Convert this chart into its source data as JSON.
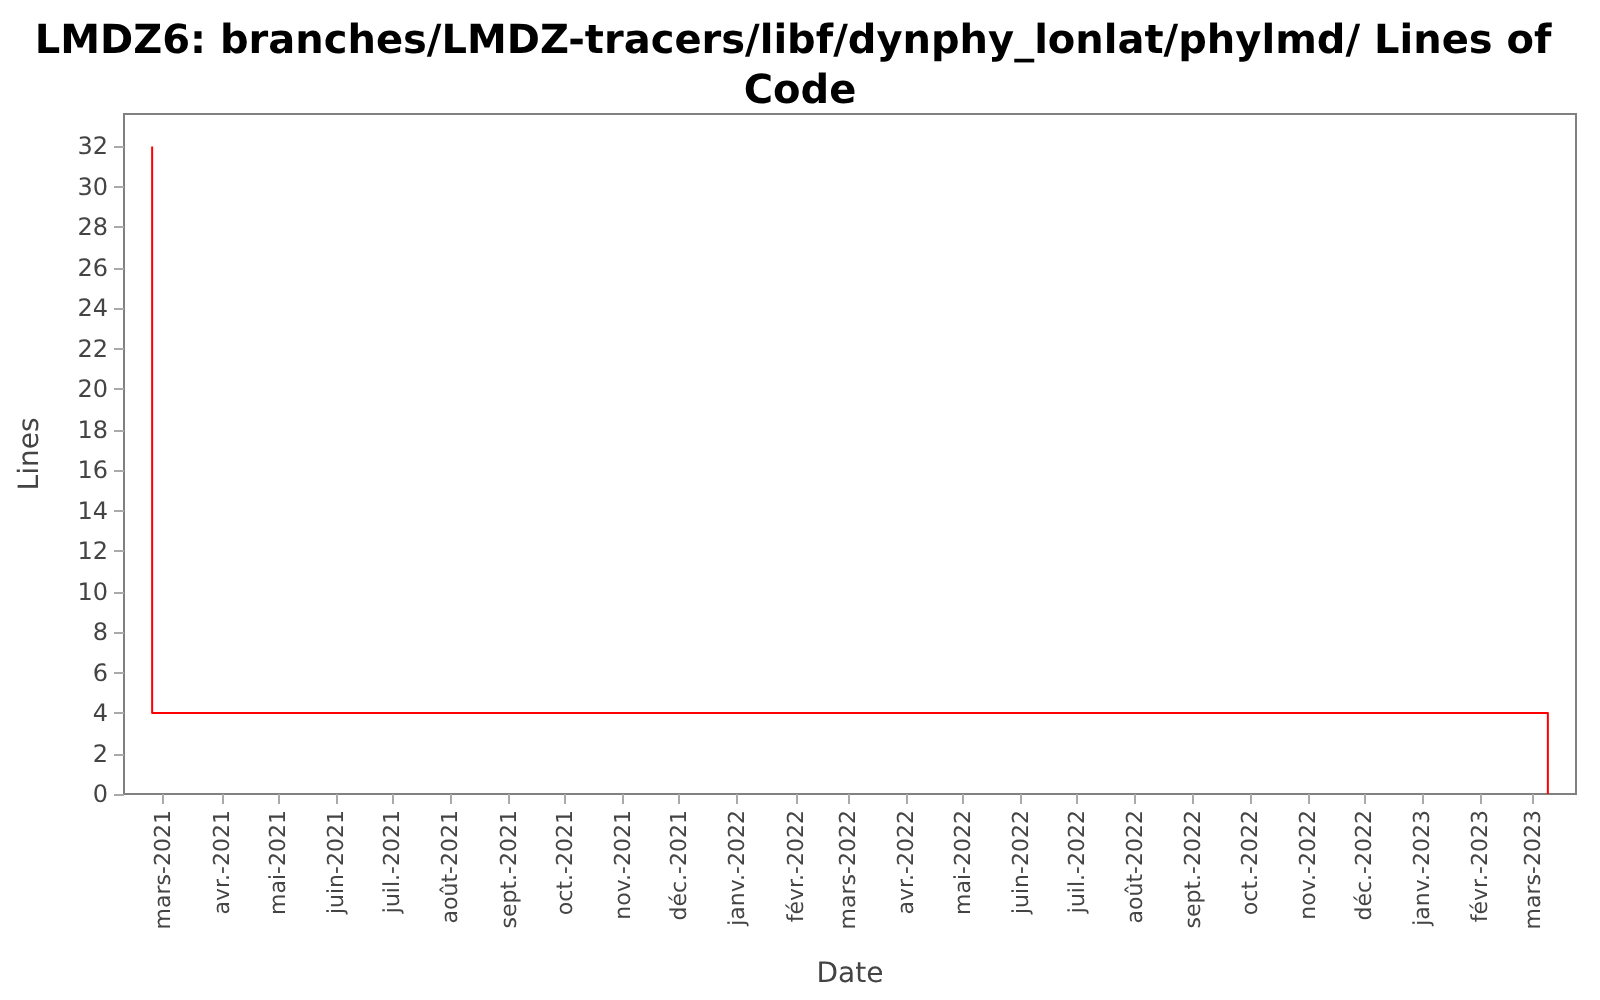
{
  "chart_data": {
    "type": "line",
    "title": "LMDZ6: branches/LMDZ-tracers/libf/dynphy_lonlat/phylmd/ Lines of Code",
    "xlabel": "Date",
    "ylabel": "Lines",
    "series": [
      {
        "color": "#ff0000",
        "x": [
          "2021-02-23",
          "2021-02-23",
          "2023-03-09",
          "2023-03-09"
        ],
        "values": [
          32,
          4,
          4,
          0
        ]
      }
    ],
    "xlim": [
      "2021-02-08",
      "2023-03-24"
    ],
    "ylim": [
      0,
      33.6
    ],
    "xticks": [
      {
        "value": "2021-03",
        "label": "mars-2021"
      },
      {
        "value": "2021-04",
        "label": "avr.-2021"
      },
      {
        "value": "2021-05",
        "label": "mai-2021"
      },
      {
        "value": "2021-06",
        "label": "juin-2021"
      },
      {
        "value": "2021-07",
        "label": "juil.-2021"
      },
      {
        "value": "2021-08",
        "label": "août-2021"
      },
      {
        "value": "2021-09",
        "label": "sept.-2021"
      },
      {
        "value": "2021-10",
        "label": "oct.-2021"
      },
      {
        "value": "2021-11",
        "label": "nov.-2021"
      },
      {
        "value": "2021-12",
        "label": "déc.-2021"
      },
      {
        "value": "2022-01",
        "label": "janv.-2022"
      },
      {
        "value": "2022-02",
        "label": "févr.-2022"
      },
      {
        "value": "2022-03",
        "label": "mars-2022"
      },
      {
        "value": "2022-04",
        "label": "avr.-2022"
      },
      {
        "value": "2022-05",
        "label": "mai-2022"
      },
      {
        "value": "2022-06",
        "label": "juin-2022"
      },
      {
        "value": "2022-07",
        "label": "juil.-2022"
      },
      {
        "value": "2022-08",
        "label": "août-2022"
      },
      {
        "value": "2022-09",
        "label": "sept.-2022"
      },
      {
        "value": "2022-10",
        "label": "oct.-2022"
      },
      {
        "value": "2022-11",
        "label": "nov.-2022"
      },
      {
        "value": "2022-12",
        "label": "déc.-2022"
      },
      {
        "value": "2023-01",
        "label": "janv.-2023"
      },
      {
        "value": "2023-02",
        "label": "févr.-2023"
      },
      {
        "value": "2023-03",
        "label": "mars-2023"
      }
    ],
    "yticks": [
      0,
      2,
      4,
      6,
      8,
      10,
      12,
      14,
      16,
      18,
      20,
      22,
      24,
      26,
      28,
      30,
      32
    ],
    "grid": false,
    "legend": false,
    "marker": "none",
    "line_style": "solid"
  }
}
